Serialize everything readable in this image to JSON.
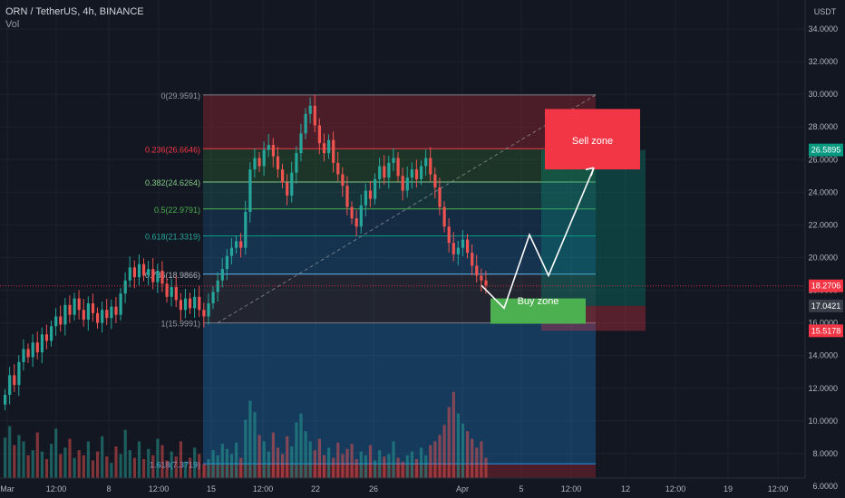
{
  "header": {
    "symbol_line": "ORN / TetherUS, 4h, BINANCE",
    "sub_line": "Vol",
    "currency": "USDT"
  },
  "colors": {
    "background": "#131722",
    "up": "#26a69a",
    "down": "#ef5350",
    "sell_zone": "#f23645",
    "buy_zone": "#4caf50",
    "current_price_tag": "#f23645",
    "target_tag": "#089981"
  },
  "annotations": {
    "sell_zone": "Sell zone",
    "buy_zone": "Buy zone"
  },
  "chart_data": {
    "type": "candlestick",
    "title": "ORN / TetherUS, 4h, BINANCE",
    "y_axis": {
      "min": 6,
      "max": 35,
      "ticks": [
        {
          "v": 34,
          "label": "34.0000"
        },
        {
          "v": 32,
          "label": "32.0000"
        },
        {
          "v": 30,
          "label": "30.0000"
        },
        {
          "v": 28,
          "label": "28.0000"
        },
        {
          "v": 26,
          "label": "26.0000"
        },
        {
          "v": 24,
          "label": "24.0000"
        },
        {
          "v": 22,
          "label": "22.0000"
        },
        {
          "v": 20,
          "label": "20.0000"
        },
        {
          "v": 18,
          "label": "18.0000"
        },
        {
          "v": 16,
          "label": "16.0000"
        },
        {
          "v": 14,
          "label": "14.0000"
        },
        {
          "v": 12,
          "label": "12.0000"
        },
        {
          "v": 10,
          "label": "10.0000"
        },
        {
          "v": 8,
          "label": "8.0000"
        },
        {
          "v": 6,
          "label": "6.0000"
        }
      ]
    },
    "x_axis": {
      "ticks": [
        {
          "label": "Mar"
        },
        {
          "label": "12:00"
        },
        {
          "label": "8"
        },
        {
          "label": "12:00"
        },
        {
          "label": "15"
        },
        {
          "label": "12:00"
        },
        {
          "label": "22"
        },
        {
          "label": "26"
        },
        {
          "label": "Apr"
        },
        {
          "label": "5"
        },
        {
          "label": "12:00"
        },
        {
          "label": "12"
        },
        {
          "label": "12:00"
        },
        {
          "label": "19"
        },
        {
          "label": "12:00"
        }
      ]
    },
    "price_tags": [
      {
        "label": "26.5895",
        "value": 26.5895,
        "kind": "target"
      },
      {
        "label": "18.2706",
        "value": 18.2706,
        "kind": "current"
      },
      {
        "label": "17.0421",
        "value": 17.0421,
        "kind": "neutral"
      },
      {
        "label": "15.5178",
        "value": 15.5178,
        "kind": "stop"
      }
    ],
    "fibonacci": [
      {
        "level": 0,
        "price": 29.9591,
        "label": "0(29.9591)"
      },
      {
        "level": 0.236,
        "price": 26.6646,
        "label": "0.236(26.6646)"
      },
      {
        "level": 0.382,
        "price": 24.6264,
        "label": "0.382(24.6264)"
      },
      {
        "level": 0.5,
        "price": 22.9791,
        "label": "0.5(22.9791)"
      },
      {
        "level": 0.618,
        "price": 21.3319,
        "label": "0.618(21.3319)"
      },
      {
        "level": 0.786,
        "price": 18.9866,
        "label": "0.786(18.9866)"
      },
      {
        "level": 1,
        "price": 15.9991,
        "label": "1(15.9991)"
      },
      {
        "level": 1.618,
        "price": 7.3719,
        "label": "1.618(7.3719)"
      }
    ],
    "projection_path": [
      18.3,
      16.9,
      21.4,
      18.9,
      25.5
    ],
    "candles": [
      [
        11,
        11.6
      ],
      [
        11.6,
        12.8
      ],
      [
        12.8,
        12.2
      ],
      [
        12.2,
        13.6
      ],
      [
        13.6,
        14.4
      ],
      [
        14.4,
        13.9
      ],
      [
        13.9,
        14.8
      ],
      [
        14.8,
        14.2
      ],
      [
        14.2,
        15.3
      ],
      [
        15.3,
        14.9
      ],
      [
        14.9,
        15.8
      ],
      [
        15.8,
        16.4
      ],
      [
        16.4,
        15.9
      ],
      [
        15.9,
        17.1
      ],
      [
        17.1,
        16.5
      ],
      [
        16.5,
        17.5
      ],
      [
        17.5,
        16.8
      ],
      [
        16.8,
        16.2
      ],
      [
        16.2,
        17.2
      ],
      [
        17.2,
        16.6
      ],
      [
        16.6,
        16
      ],
      [
        16,
        16.8
      ],
      [
        16.8,
        16.3
      ],
      [
        16.3,
        17
      ],
      [
        17,
        16.5
      ],
      [
        16.5,
        17.8
      ],
      [
        17.8,
        18.6
      ],
      [
        18.6,
        19.4
      ],
      [
        19.4,
        18.8
      ],
      [
        18.8,
        19.6
      ],
      [
        19.6,
        18.9
      ],
      [
        18.9,
        19.3
      ],
      [
        19.3,
        18.5
      ],
      [
        18.5,
        19.2
      ],
      [
        19.2,
        18.4
      ],
      [
        18.4,
        17.6
      ],
      [
        17.6,
        18.2
      ],
      [
        18.2,
        17.4
      ],
      [
        17.4,
        16.8
      ],
      [
        16.8,
        17.5
      ],
      [
        17.5,
        16.9
      ],
      [
        16.9,
        17.6
      ],
      [
        17.6,
        16.8
      ],
      [
        16.8,
        16.4
      ],
      [
        16.4,
        17.2
      ],
      [
        17.2,
        17.9
      ],
      [
        17.9,
        18.6
      ],
      [
        18.6,
        19.3
      ],
      [
        19.3,
        20.1
      ],
      [
        20.1,
        20.6
      ],
      [
        20.6,
        21
      ],
      [
        21,
        20.6
      ],
      [
        20.6,
        22.8
      ],
      [
        22.8,
        25.4
      ],
      [
        25.4,
        26.1
      ],
      [
        26.1,
        25.6
      ],
      [
        25.6,
        26.6
      ],
      [
        26.6,
        26.9
      ],
      [
        26.9,
        26.2
      ],
      [
        26.2,
        25.4
      ],
      [
        25.4,
        24.6
      ],
      [
        24.6,
        23.8
      ],
      [
        23.8,
        25.2
      ],
      [
        25.2,
        26.4
      ],
      [
        26.4,
        27.6
      ],
      [
        27.6,
        28.8
      ],
      [
        28.8,
        29.3
      ],
      [
        29.3,
        28.1
      ],
      [
        28.1,
        27
      ],
      [
        27,
        26.4
      ],
      [
        26.4,
        27.2
      ],
      [
        27.2,
        25.8
      ],
      [
        25.8,
        25.1
      ],
      [
        25.1,
        24.4
      ],
      [
        24.4,
        23.1
      ],
      [
        23.1,
        22.4
      ],
      [
        22.4,
        21.9
      ],
      [
        21.9,
        23.2
      ],
      [
        23.2,
        24.1
      ],
      [
        24.1,
        23.6
      ],
      [
        23.6,
        24.8
      ],
      [
        24.8,
        25.6
      ],
      [
        25.6,
        24.9
      ],
      [
        24.9,
        25.8
      ],
      [
        25.8,
        26.1
      ],
      [
        26.1,
        25
      ],
      [
        25,
        24.1
      ],
      [
        24.1,
        24.9
      ],
      [
        24.9,
        25.4
      ],
      [
        25.4,
        24.8
      ],
      [
        24.8,
        25.6
      ],
      [
        25.6,
        26.1
      ],
      [
        26.1,
        25.1
      ],
      [
        25.1,
        24.3
      ],
      [
        24.3,
        23.1
      ],
      [
        23.1,
        21.9
      ],
      [
        21.9,
        20.9
      ],
      [
        20.9,
        20.2
      ],
      [
        20.2,
        20.6
      ],
      [
        20.6,
        21.1
      ],
      [
        21.1,
        20.3
      ],
      [
        20.3,
        19.5
      ],
      [
        19.5,
        18.9
      ],
      [
        18.9,
        18.6
      ],
      [
        18.6,
        18.3
      ]
    ],
    "volumes": [
      3.2,
      4.1,
      2.6,
      3.4,
      2.9,
      1.8,
      2.2,
      3.6,
      2.1,
      1.5,
      2.7,
      3.9,
      1.9,
      2.4,
      3.1,
      1.6,
      2.2,
      1.8,
      2.9,
      1.4,
      2.1,
      3.3,
      1.7,
      1.2,
      2.5,
      1.9,
      3.8,
      2.2,
      1.6,
      2.9,
      1.5,
      2.3,
      1.8,
      3.1,
      2.6,
      1.4,
      2.1,
      1.7,
      2.9,
      1.3,
      1.6,
      2.4,
      1.9,
      1.1,
      1.5,
      2.2,
      1.8,
      2.7,
      2.3,
      1.9,
      2.8,
      1.6,
      4.6,
      6.1,
      5.2,
      3.4,
      2.9,
      2.1,
      3.6,
      2.4,
      1.9,
      3.3,
      2.5,
      4.4,
      5.1,
      3.7,
      2.9,
      2.2,
      3.1,
      1.8,
      2.4,
      1.6,
      2.8,
      1.9,
      2.3,
      2.7,
      1.5,
      2.1,
      1.8,
      2.6,
      1.4,
      2.2,
      1.7,
      1.9,
      2.9,
      1.6,
      1.3,
      1.8,
      2.1,
      1.5,
      2.4,
      1.8,
      2.6,
      2.9,
      3.4,
      4.2,
      5.6,
      6.8,
      5.1,
      4.3,
      3.7,
      3.1,
      2.4,
      2.9,
      1.6
    ]
  }
}
